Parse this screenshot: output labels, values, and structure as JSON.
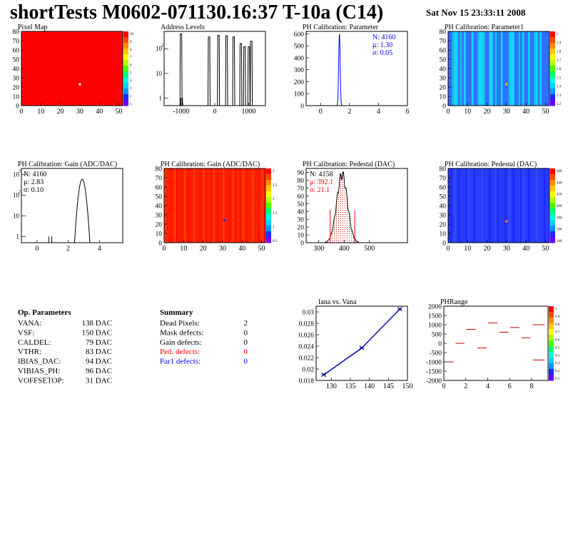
{
  "header": {
    "title": "shortTests M0602-071130.16:37 T-10a (C14)",
    "date": "Sat Nov 15 23:33:11 2008"
  },
  "palette": [
    "#6a00ff",
    "#1c28ff",
    "#0096ff",
    "#00d2ff",
    "#00ffd2",
    "#00ff6e",
    "#48ff00",
    "#b4ff00",
    "#ffff00",
    "#ffc800",
    "#ff8c00",
    "#ff4600",
    "#ff0000"
  ],
  "chart_data": [
    {
      "type": "heatmap",
      "title": "Pixel Map",
      "xlim": [
        0,
        52
      ],
      "ylim": [
        0,
        80
      ],
      "xticks": [
        "0",
        "10",
        "20",
        "30",
        "40",
        "50"
      ],
      "yticks": [
        "0",
        "10",
        "20",
        "30",
        "40",
        "50",
        "60",
        "70",
        "80"
      ],
      "zticks": [
        "10",
        "9",
        "8",
        "7",
        "6",
        "5",
        "4",
        "3",
        "2",
        "1"
      ],
      "base_value": 10,
      "highlight": {
        "x": 30,
        "y": 23,
        "color": "#ffffff"
      }
    },
    {
      "type": "bar",
      "title": "Address Levels",
      "log_y": true,
      "xlim": [
        -1500,
        1500
      ],
      "ylim": [
        0.5,
        500
      ],
      "xticks": [
        "-1000",
        "0",
        "1000"
      ],
      "peaks": [
        {
          "x": -1000,
          "h": 400
        },
        {
          "x": -980,
          "h": 1
        },
        {
          "x": -170,
          "h": 300
        },
        {
          "x": 110,
          "h": 350
        },
        {
          "x": 350,
          "h": 330
        },
        {
          "x": 560,
          "h": 300
        },
        {
          "x": 770,
          "h": 160
        },
        {
          "x": 880,
          "h": 120
        },
        {
          "x": 1010,
          "h": 120
        },
        {
          "x": 1080,
          "h": 200
        }
      ]
    },
    {
      "type": "bar",
      "title": "PH Calibration: Parameter",
      "xlim": [
        -1,
        6
      ],
      "ylim": [
        0,
        620
      ],
      "xticks": [
        "0",
        "2",
        "4",
        "6"
      ],
      "yticks": [
        "0",
        "100",
        "200",
        "300",
        "400",
        "500",
        "600"
      ],
      "stats": {
        "n": "N: 4160",
        "mean": "μ: 1.30",
        "sigma": "σ: 0.05"
      },
      "curve": {
        "mean": 1.3,
        "sigma": 0.05,
        "peak": 600
      }
    },
    {
      "type": "heatmap",
      "title": "PH Calibration: Parameter1",
      "xlim": [
        0,
        52
      ],
      "ylim": [
        0,
        80
      ],
      "xticks": [
        "0",
        "10",
        "20",
        "30",
        "40",
        "50"
      ],
      "yticks": [
        "0",
        "10",
        "20",
        "30",
        "40",
        "50",
        "60",
        "70",
        "80"
      ],
      "zticks": [
        "2",
        "1.9",
        "1.8",
        "1.7",
        "1.6",
        "1.5",
        "1.4",
        "1.3",
        "1.2"
      ],
      "column_levels": [
        3,
        3,
        4,
        2,
        2,
        3,
        4,
        3,
        2,
        3,
        3,
        3,
        2,
        3,
        3,
        4,
        2,
        2,
        4,
        3,
        3,
        2,
        2,
        3,
        4,
        3,
        3,
        2,
        3,
        3,
        3,
        4,
        2,
        2,
        3,
        3,
        4,
        3,
        2,
        3,
        3,
        2,
        3,
        3,
        4,
        2,
        3,
        2,
        3,
        3,
        3,
        3
      ],
      "highlight": {
        "x": 30,
        "y": 23,
        "color": "#ffc800"
      }
    },
    {
      "type": "bar",
      "title": "PH Calibration: Gain (ADC/DAC)",
      "log_y": true,
      "xlim": [
        -1,
        5.5
      ],
      "ylim": [
        0.5,
        2000
      ],
      "xticks": [
        "0",
        "2",
        "4"
      ],
      "stats": {
        "n": "N: 4160",
        "mean": "μ: 2.83",
        "sigma": "σ: 0.10"
      },
      "curve": {
        "mean": 2.9,
        "sigma": 0.13,
        "peak": 600
      }
    },
    {
      "type": "heatmap",
      "title": "PH Calibration: Gain (ADC/DAC)",
      "xlim": [
        0,
        52
      ],
      "ylim": [
        0,
        80
      ],
      "xticks": [
        "0",
        "10",
        "20",
        "30",
        "40",
        "50"
      ],
      "yticks": [
        "0",
        "10",
        "20",
        "30",
        "40",
        "50",
        "60",
        "70",
        "80"
      ],
      "zticks": [
        "3",
        "2.5",
        "2",
        "1.5",
        "1",
        "0.5"
      ],
      "base_value": 12,
      "highlight": {
        "x": 31,
        "y": 24,
        "color": "#1c28ff"
      }
    },
    {
      "type": "bar",
      "title": "PH Calibration: Pedestal (DAC)",
      "xlim": [
        250,
        650
      ],
      "ylim": [
        0,
        95
      ],
      "xticks": [
        "300",
        "400",
        "500"
      ],
      "yticks": [
        "0",
        "10",
        "20",
        "30",
        "40",
        "50",
        "60",
        "70",
        "80",
        "90"
      ],
      "stats": {
        "n": "N: 4158",
        "mean": "μ: 392.1",
        "sigma": "σ: 21.1"
      },
      "curve": {
        "mean": 392,
        "sigma": 21,
        "peak": 85
      },
      "cut_lines": [
        {
          "x": 345,
          "h": 42
        },
        {
          "x": 442,
          "h": 42
        }
      ]
    },
    {
      "type": "heatmap",
      "title": "PH Calibration: Pedestal (DAC)",
      "xlim": [
        0,
        52
      ],
      "ylim": [
        0,
        80
      ],
      "xticks": [
        "0",
        "10",
        "20",
        "30",
        "40",
        "50"
      ],
      "yticks": [
        "0",
        "10",
        "20",
        "30",
        "40",
        "50",
        "60",
        "70",
        "80"
      ],
      "zticks": [
        "460",
        "440",
        "420",
        "400",
        "380",
        "360",
        "340"
      ],
      "base_value": 1,
      "highlight": {
        "x": 30,
        "y": 23,
        "color": "#ff8c00"
      }
    },
    {
      "type": "line",
      "title": "Iana vs. Vana",
      "xlim": [
        126,
        150
      ],
      "ylim": [
        0.018,
        0.031
      ],
      "xticks": [
        "130",
        "135",
        "140",
        "145",
        "150"
      ],
      "yticks": [
        "0.018",
        "0.02",
        "0.022",
        "0.024",
        "0.026",
        "0.028",
        "0.03"
      ],
      "points": [
        {
          "x": 128,
          "y": 0.019
        },
        {
          "x": 138,
          "y": 0.0237
        },
        {
          "x": 148,
          "y": 0.0305
        }
      ]
    },
    {
      "type": "scatter",
      "title": "PHRange",
      "xlim": [
        0,
        9.5
      ],
      "ylim": [
        -2000,
        2000
      ],
      "xticks": [
        "0",
        "2",
        "4",
        "6",
        "8"
      ],
      "yticks": [
        "2000",
        "1500",
        "1000",
        "500",
        "0",
        "-500",
        "-1000",
        "-1500",
        "-2000"
      ],
      "zticks": [
        "1",
        "0.9",
        "0.8",
        "0.7",
        "0.6",
        "0.5",
        "0.4",
        "0.3",
        "0.2",
        "0.1"
      ],
      "segments": [
        {
          "x0": 0.05,
          "x1": 0.9,
          "y": -1000
        },
        {
          "x0": 1.05,
          "x1": 1.9,
          "y": 0
        },
        {
          "x0": 2.05,
          "x1": 2.9,
          "y": 750
        },
        {
          "x0": 3.05,
          "x1": 3.9,
          "y": -250
        },
        {
          "x0": 4.05,
          "x1": 4.9,
          "y": 1100
        },
        {
          "x0": 5.05,
          "x1": 5.9,
          "y": 600
        },
        {
          "x0": 6.05,
          "x1": 6.9,
          "y": 850
        },
        {
          "x0": 7.05,
          "x1": 7.9,
          "y": 300
        },
        {
          "x0": 8.1,
          "x1": 9.2,
          "y": 1000
        },
        {
          "x0": 8.1,
          "x1": 9.2,
          "y": -900
        }
      ]
    }
  ],
  "op_parameters": {
    "heading": "Op. Parameters",
    "rows": [
      {
        "name": "VANA:",
        "value": "138 DAC"
      },
      {
        "name": "VSF:",
        "value": "150 DAC"
      },
      {
        "name": "CALDEL:",
        "value": "79 DAC"
      },
      {
        "name": "VTHR:",
        "value": "83 DAC"
      },
      {
        "name": "IBIAS_DAC:",
        "value": "94 DAC"
      },
      {
        "name": "VIBIAS_PH:",
        "value": "96 DAC"
      },
      {
        "name": "VOFFSETOP:",
        "value": "31 DAC"
      }
    ]
  },
  "summary": {
    "heading": "Summary",
    "rows": [
      {
        "name": "Dead Pixels:",
        "value": "2",
        "color": "#000000"
      },
      {
        "name": "Mask defects:",
        "value": "0",
        "color": "#000000"
      },
      {
        "name": "Gain defects:",
        "value": "0",
        "color": "#000000"
      },
      {
        "name": "Ped. defects:",
        "value": "0",
        "color": "#ff0000"
      },
      {
        "name": "Par1 defects:",
        "value": "0",
        "color": "#0000ff"
      }
    ]
  }
}
